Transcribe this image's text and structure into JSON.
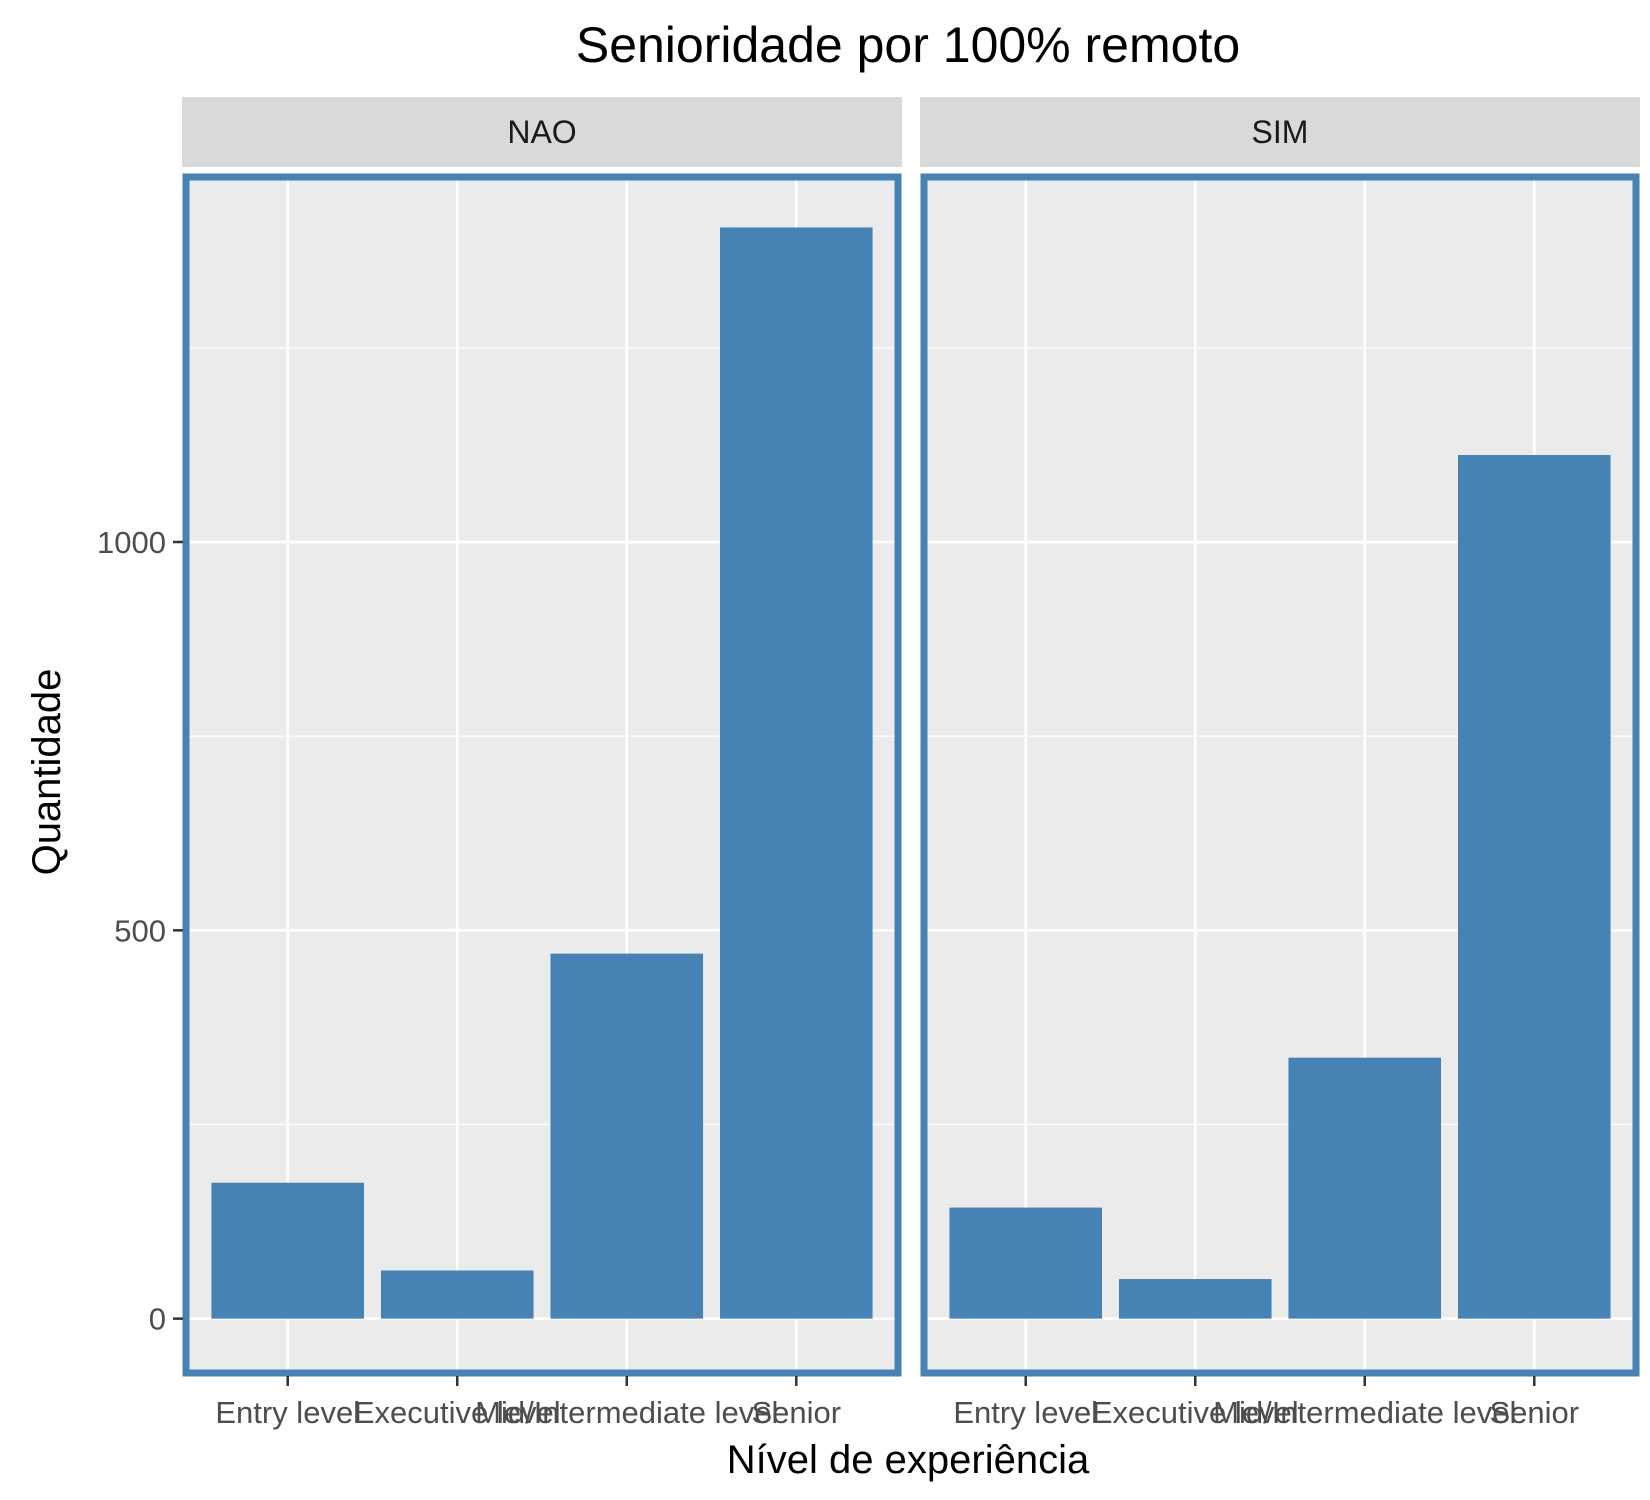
{
  "chart_data": {
    "type": "bar",
    "title": "Senioridade por 100% remoto",
    "xlabel": "Nível de experiência",
    "ylabel": "Quantidade",
    "categories": [
      "Entry level",
      "Executive level",
      "Mid/Intermediate level",
      "Senior"
    ],
    "ylim": [
      -70,
      1470
    ],
    "yticks": [
      0,
      500,
      1000
    ],
    "grid": true,
    "colors": {
      "bar": "#4682B4",
      "panel_border": "#4682B4",
      "panel_bg": "#EBEBEB",
      "strip_bg": "#D9D9D9",
      "grid": "#FFFFFF"
    },
    "facets": [
      {
        "label": "NAO",
        "values": [
          175,
          62,
          470,
          1405
        ]
      },
      {
        "label": "SIM",
        "values": [
          143,
          51,
          336,
          1112
        ]
      }
    ]
  }
}
